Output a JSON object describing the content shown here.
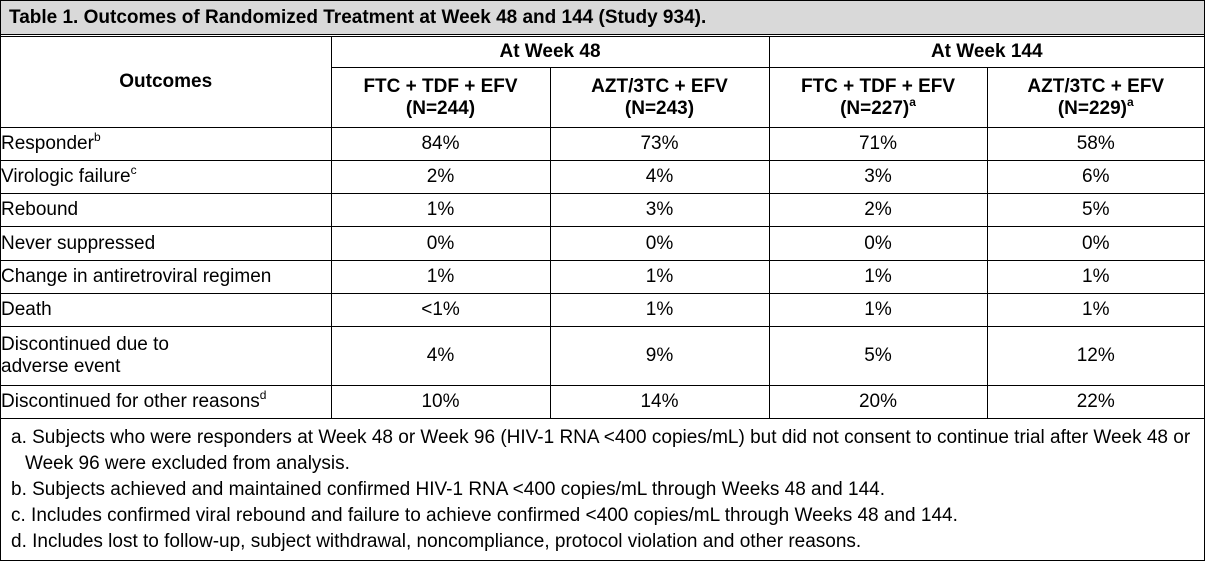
{
  "title": "Table 1. Outcomes of Randomized Treatment at Week 48 and 144 (Study 934).",
  "header": {
    "outcomes_label": "Outcomes",
    "groups": [
      "At Week 48",
      "At Week 144"
    ],
    "columns": [
      {
        "line1": "FTC + TDF + EFV",
        "line2": "(N=244)",
        "sup": ""
      },
      {
        "line1": "AZT/3TC + EFV",
        "line2": "(N=243)",
        "sup": ""
      },
      {
        "line1": "FTC + TDF + EFV",
        "line2": "(N=227)",
        "sup": "a"
      },
      {
        "line1": "AZT/3TC + EFV",
        "line2": "(N=229)",
        "sup": "a"
      }
    ]
  },
  "rows": [
    {
      "label": "Responder",
      "sup": "b",
      "values": [
        "84%",
        "73%",
        "71%",
        "58%"
      ]
    },
    {
      "label": "Virologic failure",
      "sup": "c",
      "values": [
        "2%",
        "4%",
        "3%",
        "6%"
      ]
    },
    {
      "label": "Rebound",
      "sup": "",
      "values": [
        "1%",
        "3%",
        "2%",
        "5%"
      ]
    },
    {
      "label": "Never suppressed",
      "sup": "",
      "values": [
        "0%",
        "0%",
        "0%",
        "0%"
      ]
    },
    {
      "label": "Change in antiretroviral regimen",
      "sup": "",
      "values": [
        "1%",
        "1%",
        "1%",
        "1%"
      ]
    },
    {
      "label": "Death",
      "sup": "",
      "values": [
        "<1%",
        "1%",
        "1%",
        "1%"
      ]
    },
    {
      "label": "Discontinued due to",
      "label2": "adverse event",
      "sup": "",
      "values": [
        "4%",
        "9%",
        "5%",
        "12%"
      ]
    },
    {
      "label": "Discontinued for other reasons",
      "sup": "d",
      "values": [
        "10%",
        "14%",
        "20%",
        "22%"
      ]
    }
  ],
  "footnotes": [
    "a. Subjects who were responders at Week 48 or Week 96 (HIV-1 RNA <400 copies/mL) but did not consent to continue trial after Week 48 or Week 96 were excluded from analysis.",
    "b. Subjects achieved and maintained confirmed HIV-1 RNA <400 copies/mL through Weeks 48 and 144.",
    "c. Includes confirmed viral rebound and failure to achieve confirmed <400 copies/mL through Weeks 48 and 144.",
    "d. Includes lost to follow-up, subject withdrawal, noncompliance, protocol violation and other reasons."
  ]
}
